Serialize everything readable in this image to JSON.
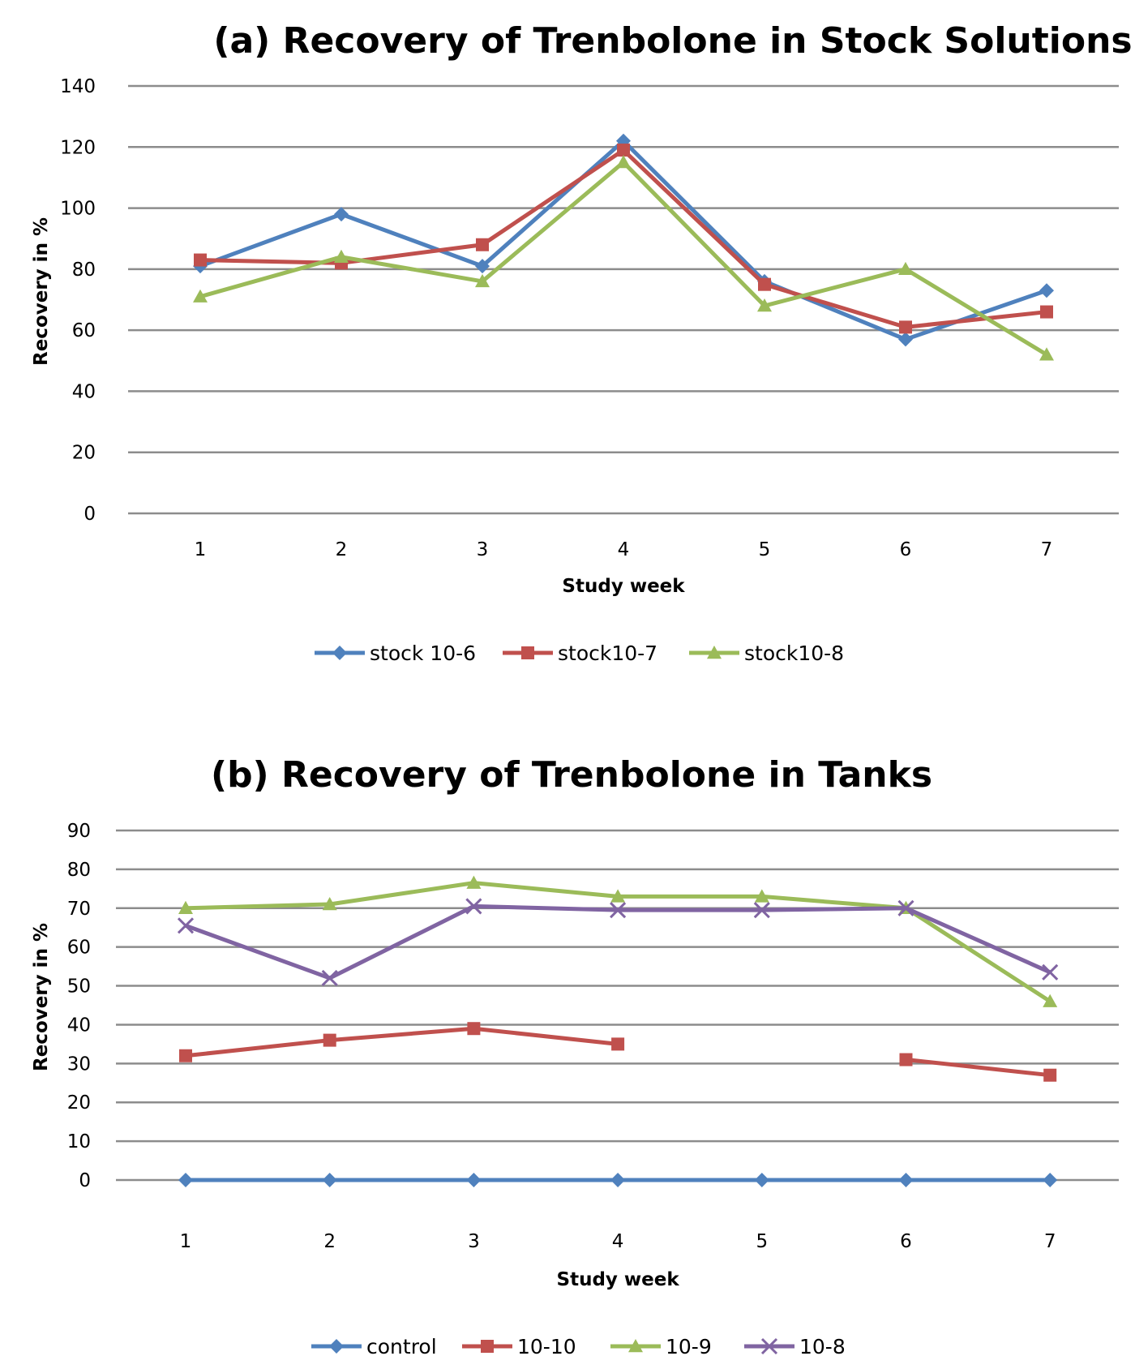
{
  "chart_data": [
    {
      "type": "line",
      "title": "(a) Recovery of Trenbolone in Stock Solutions",
      "xlabel": "Study week",
      "ylabel": "Recovery in %",
      "x": [
        1,
        2,
        3,
        4,
        5,
        6,
        7
      ],
      "x_tick_labels": [
        "1",
        "2",
        "3",
        "4",
        "5",
        "6",
        "7"
      ],
      "ylim": [
        0,
        140
      ],
      "y_ticks": [
        0,
        20,
        40,
        60,
        80,
        100,
        120,
        140
      ],
      "y_tick_labels": [
        "0",
        "20",
        "40",
        "60",
        "80",
        "100",
        "120",
        "140"
      ],
      "grid": true,
      "legend_position": "bottom",
      "series": [
        {
          "name": "stock  10-6",
          "color": "#4f81bd",
          "marker": "diamond",
          "values": [
            81,
            98,
            81,
            122,
            76,
            57,
            73
          ]
        },
        {
          "name": "stock10-7",
          "color": "#c0504d",
          "marker": "square",
          "values": [
            83,
            82,
            88,
            119,
            75,
            61,
            66
          ]
        },
        {
          "name": "stock10-8",
          "color": "#9bbb59",
          "marker": "triangle",
          "values": [
            71,
            84,
            76,
            115,
            68,
            80,
            52
          ]
        }
      ]
    },
    {
      "type": "line",
      "title": "(b) Recovery of Trenbolone in Tanks",
      "xlabel": "Study week",
      "ylabel": "Recovery in %",
      "x": [
        1,
        2,
        3,
        4,
        5,
        6,
        7
      ],
      "x_tick_labels": [
        "1",
        "2",
        "3",
        "4",
        "5",
        "6",
        "7"
      ],
      "ylim": [
        0,
        90
      ],
      "y_ticks": [
        0,
        10,
        20,
        30,
        40,
        50,
        60,
        70,
        80,
        90
      ],
      "y_tick_labels": [
        "0",
        "10",
        "20",
        "30",
        "40",
        "50",
        "60",
        "70",
        "80",
        "90"
      ],
      "grid": true,
      "legend_position": "bottom",
      "series": [
        {
          "name": "control",
          "color": "#4f81bd",
          "marker": "diamond",
          "values": [
            0,
            0,
            0,
            0,
            0,
            0,
            0
          ]
        },
        {
          "name": "10-10",
          "color": "#c0504d",
          "marker": "square",
          "values": [
            32,
            36,
            39,
            35,
            null,
            31,
            27
          ]
        },
        {
          "name": "10-9",
          "color": "#9bbb59",
          "marker": "triangle",
          "values": [
            70,
            71,
            76.5,
            73,
            73,
            70,
            46
          ]
        },
        {
          "name": "10-8",
          "color": "#8064a2",
          "marker": "x",
          "values": [
            65.5,
            52,
            70.5,
            69.5,
            69.5,
            70,
            53.5
          ]
        }
      ]
    }
  ]
}
